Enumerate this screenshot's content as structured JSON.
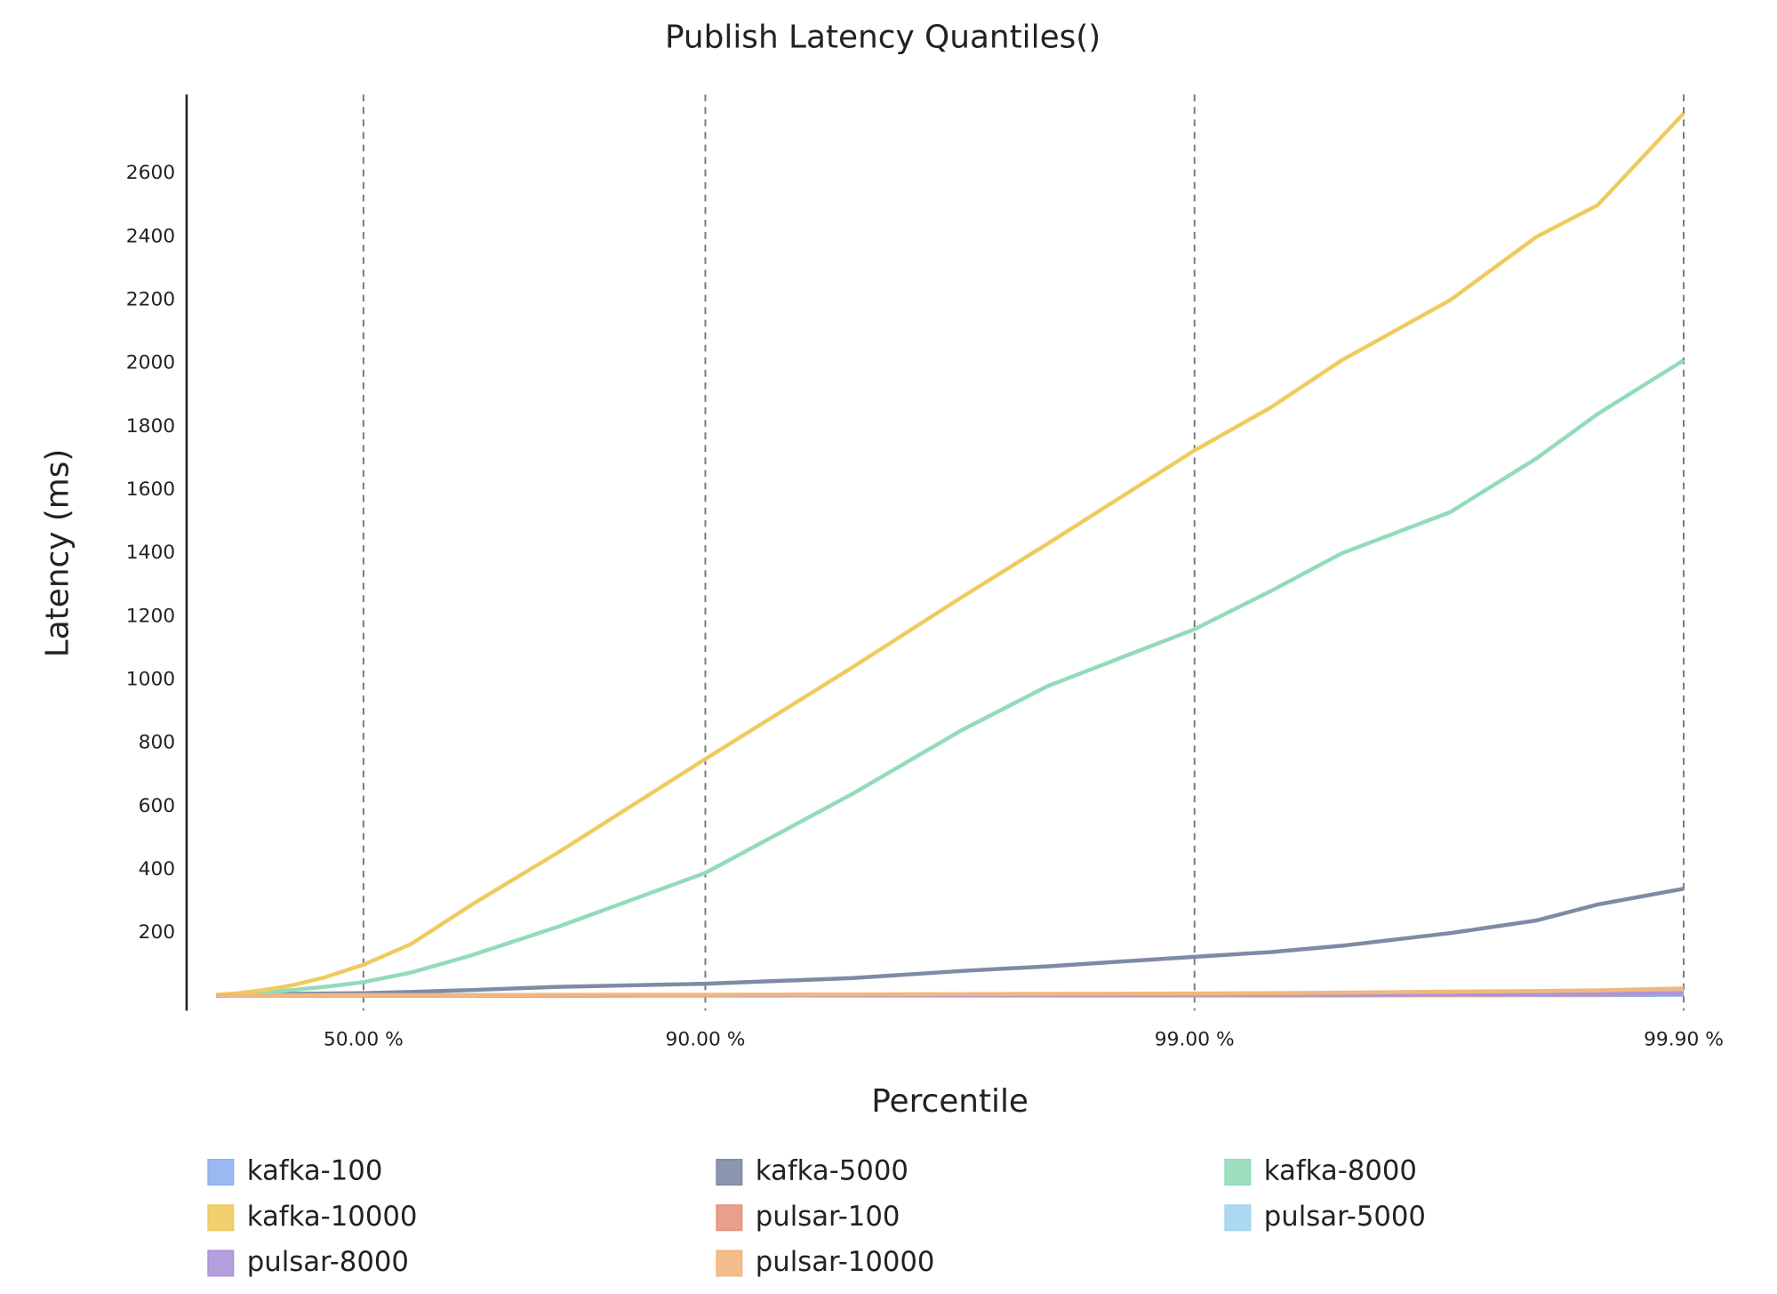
{
  "chart_data": {
    "type": "line",
    "title": "Publish Latency Quantiles()",
    "x_label": "Percentile",
    "y_label": "Latency (ms)",
    "xscale": "log-tail",
    "x": [
      0,
      10,
      20,
      30,
      40,
      50,
      60,
      70,
      80,
      90,
      95,
      97,
      98,
      99,
      99.3,
      99.5,
      99.7,
      99.8,
      99.85,
      99.9
    ],
    "xlim": [
      0,
      99.9
    ],
    "xticks": [
      {
        "value": 50,
        "label": "50.00 %"
      },
      {
        "value": 90,
        "label": "90.00 %"
      },
      {
        "value": 99,
        "label": "99.00 %"
      },
      {
        "value": 99.9,
        "label": "99.90 %"
      }
    ],
    "ylim": [
      -45,
      2850
    ],
    "yticks": [
      200,
      400,
      600,
      800,
      1000,
      1200,
      1400,
      1600,
      1800,
      2000,
      2200,
      2400,
      2600
    ],
    "grid": "x-dashed",
    "series": [
      {
        "name": "kafka-100",
        "color": "#8fb1f0",
        "values": [
          2,
          2,
          2,
          2,
          2,
          2,
          2,
          2,
          2,
          3,
          3,
          3,
          3,
          3,
          3,
          3,
          4,
          4,
          4,
          5
        ]
      },
      {
        "name": "kafka-5000",
        "color": "#7f8ba5",
        "values": [
          2,
          4,
          6,
          8,
          9,
          10,
          14,
          20,
          30,
          40,
          58,
          80,
          95,
          125,
          140,
          160,
          200,
          240,
          290,
          340
        ]
      },
      {
        "name": "kafka-8000",
        "color": "#93dbb9",
        "values": [
          5,
          8,
          12,
          20,
          30,
          45,
          75,
          130,
          220,
          390,
          640,
          840,
          980,
          1160,
          1280,
          1400,
          1530,
          1700,
          1840,
          2010
        ]
      },
      {
        "name": "kafka-10000",
        "color": "#efcb5f",
        "values": [
          5,
          10,
          20,
          35,
          60,
          100,
          165,
          290,
          455,
          750,
          1040,
          1260,
          1430,
          1725,
          1860,
          2010,
          2200,
          2400,
          2500,
          2790
        ]
      },
      {
        "name": "pulsar-100",
        "color": "#e59680",
        "values": [
          3,
          3,
          3,
          3,
          3,
          3,
          3,
          3,
          4,
          4,
          4,
          4,
          4,
          5,
          5,
          5,
          5,
          6,
          6,
          8
        ]
      },
      {
        "name": "pulsar-5000",
        "color": "#a3d5ef",
        "values": [
          3,
          3,
          3,
          4,
          4,
          4,
          4,
          4,
          5,
          5,
          6,
          6,
          7,
          8,
          9,
          10,
          11,
          12,
          13,
          15
        ]
      },
      {
        "name": "pulsar-8000",
        "color": "#ab96d9",
        "values": [
          3,
          3,
          3,
          3,
          3,
          4,
          4,
          4,
          4,
          4,
          5,
          5,
          5,
          6,
          6,
          6,
          7,
          7,
          8,
          10
        ]
      },
      {
        "name": "pulsar-10000",
        "color": "#f2b77e",
        "values": [
          3,
          3,
          3,
          3,
          4,
          4,
          4,
          4,
          5,
          5,
          6,
          7,
          8,
          9,
          10,
          12,
          15,
          17,
          19,
          25
        ]
      }
    ]
  }
}
